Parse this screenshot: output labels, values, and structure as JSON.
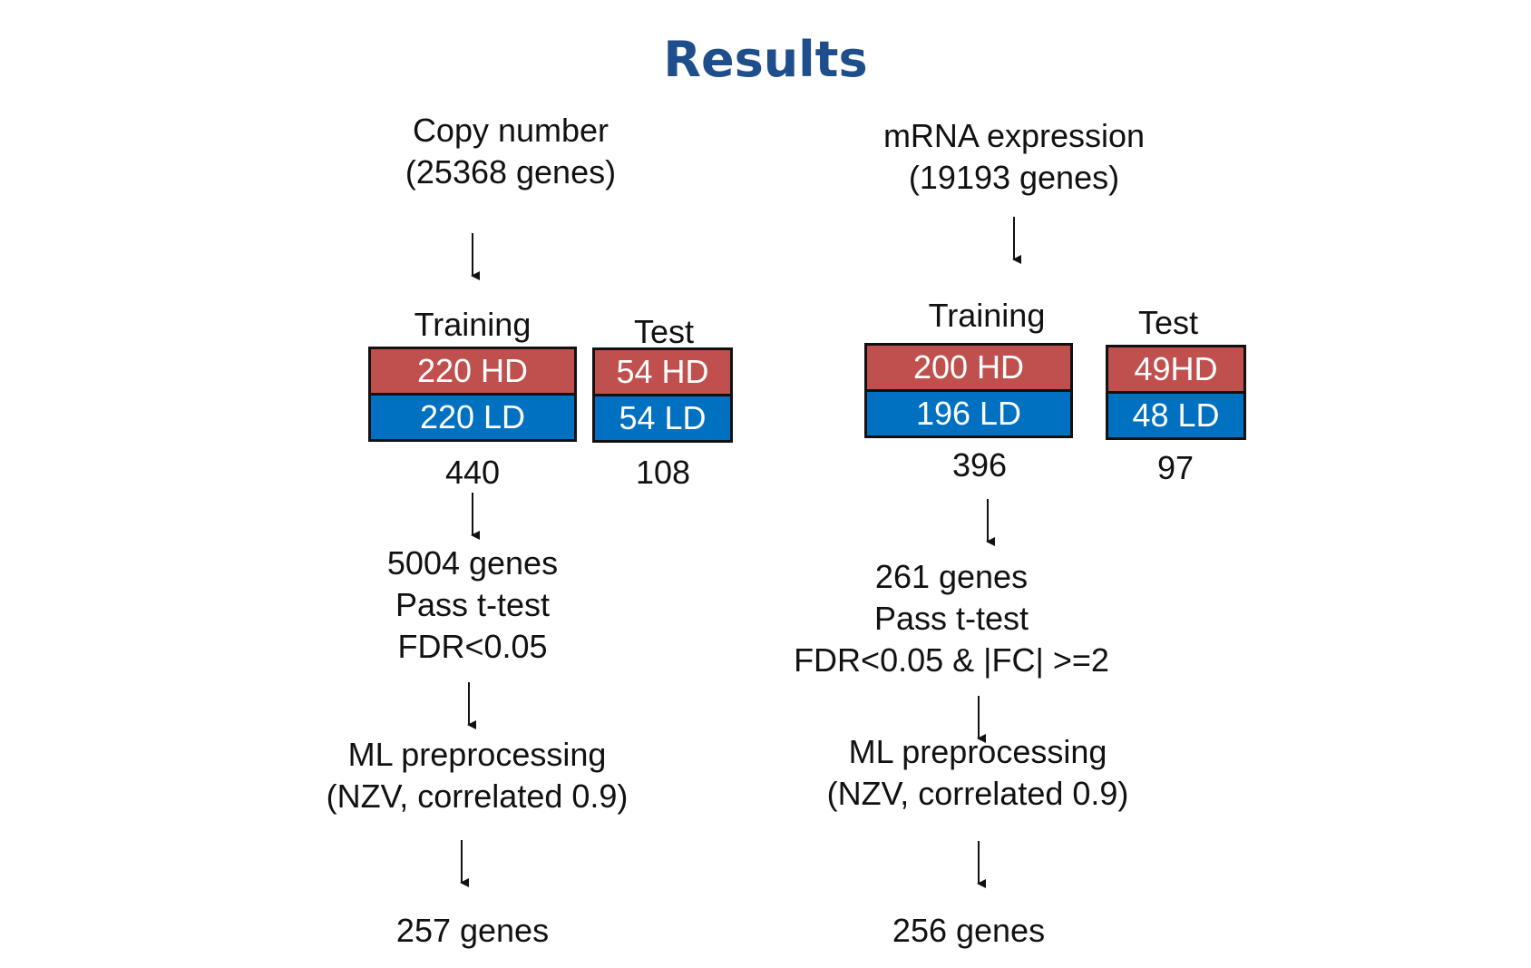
{
  "title": "Results",
  "colors": {
    "title": "#1f4e8c",
    "hd": "#c0504d",
    "ld": "#0070c0"
  },
  "left": {
    "source": [
      "Copy number",
      "(25368 genes)"
    ],
    "training": {
      "label": "Training",
      "hd": "220 HD",
      "ld": "220 LD",
      "total": "440"
    },
    "test": {
      "label": "Test",
      "hd": "54 HD",
      "ld": "54 LD",
      "total": "108"
    },
    "filter": [
      "5004 genes",
      "Pass t-test",
      "FDR<0.05"
    ],
    "preprocess": [
      "ML preprocessing",
      "(NZV, correlated 0.9)"
    ],
    "result": "257 genes"
  },
  "right": {
    "source": [
      "mRNA expression",
      "(19193 genes)"
    ],
    "training": {
      "label": "Training",
      "hd": "200 HD",
      "ld": "196 LD",
      "total": "396"
    },
    "test": {
      "label": "Test",
      "hd": "49HD",
      "ld": "48 LD",
      "total": "97"
    },
    "filter": [
      "261 genes",
      "Pass t-test",
      "FDR<0.05 & |FC| >=2"
    ],
    "preprocess": [
      "ML preprocessing",
      "(NZV, correlated 0.9)"
    ],
    "result": "256 genes"
  }
}
